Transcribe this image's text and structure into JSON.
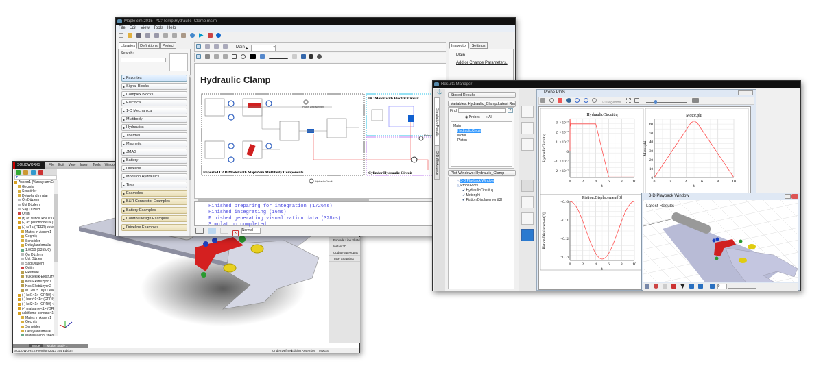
{
  "solidworks": {
    "logo": "SOLIDWORKS",
    "menu": [
      "File",
      "Edit",
      "View",
      "Insert",
      "Tools",
      "Window"
    ],
    "tree": [
      {
        "label": "Assem1  (Varsayılan<Görüntü D",
        "icon": "assembly",
        "indent": 0
      },
      {
        "label": "Geçmiş",
        "icon": "folder",
        "indent": 1
      },
      {
        "label": "Sensörler",
        "icon": "folder",
        "indent": 1
      },
      {
        "label": "Detaylandırmalar",
        "icon": "folder",
        "indent": 1
      },
      {
        "label": "Ön Düzlem",
        "icon": "plane",
        "indent": 1
      },
      {
        "label": "Üst Düzlem",
        "icon": "plane",
        "indent": 1
      },
      {
        "label": "Sağ Düzlem",
        "icon": "plane",
        "indent": 1
      },
      {
        "label": "Orijin",
        "icon": "origin",
        "indent": 1
      },
      {
        "label": "(f) ax silindir kovu<1> (OPR",
        "icon": "part",
        "indent": 1
      },
      {
        "label": "(-) ax pistonrod<1> (OPR0)",
        "icon": "part",
        "indent": 1
      },
      {
        "label": "(-) r<1> (OPR0) <<Varsayıl",
        "icon": "part",
        "indent": 1
      },
      {
        "label": "Mates in Assem1",
        "icon": "folder",
        "indent": 2
      },
      {
        "label": "Geçmiş",
        "icon": "folder",
        "indent": 2
      },
      {
        "label": "Sensörler",
        "icon": "folder",
        "indent": 2
      },
      {
        "label": "Detaylandırmalar",
        "icon": "folder",
        "indent": 2
      },
      {
        "label": "1.0050 (S355J0)",
        "icon": "material",
        "indent": 2
      },
      {
        "label": "Ön Düzlem",
        "icon": "plane",
        "indent": 2
      },
      {
        "label": "Üst Düzlem",
        "icon": "plane",
        "indent": 2
      },
      {
        "label": "Sağ Düzlem",
        "icon": "plane",
        "indent": 2
      },
      {
        "label": "Orijin",
        "icon": "origin",
        "indent": 2
      },
      {
        "label": "Ekstrude1",
        "icon": "feature",
        "indent": 2
      },
      {
        "label": "Yükseklik-Ekstrüzyon1",
        "icon": "feature",
        "indent": 2
      },
      {
        "label": "Kes-Ekstrüzyon1",
        "icon": "feature",
        "indent": 2
      },
      {
        "label": "Kes-Ekstrüzyon2",
        "icon": "feature",
        "indent": 2
      },
      {
        "label": "M12x1.5 Dişli Delik1",
        "icon": "feature",
        "indent": 2
      },
      {
        "label": "(-) kol1<1> (OPR0) <<Varsı",
        "icon": "part",
        "indent": 1
      },
      {
        "label": "(-) burc^1<1> (OPR0) <<Va",
        "icon": "part",
        "indent": 1
      },
      {
        "label": "(-) kol2<1> (OPR0) <<Varsı",
        "icon": "part",
        "indent": 1
      },
      {
        "label": "(-) mafsame<1> (OPR0)",
        "icon": "part",
        "indent": 1
      },
      {
        "label": "sabitleme somunu<1> (OP",
        "icon": "part",
        "indent": 1
      },
      {
        "label": "Mates in Assem1",
        "icon": "folder",
        "indent": 2
      },
      {
        "label": "Geçmiş",
        "icon": "folder",
        "indent": 2
      },
      {
        "label": "Sensörler",
        "icon": "folder",
        "indent": 2
      },
      {
        "label": "Detaylandırmalar",
        "icon": "folder",
        "indent": 2
      },
      {
        "label": "Material <not specified>",
        "icon": "material",
        "indent": 2
      },
      {
        "label": "Ön Düzlem",
        "icon": "plane",
        "indent": 2
      },
      {
        "label": "Üst Düzlem",
        "icon": "plane",
        "indent": 2
      },
      {
        "label": "Sağ Düzlem",
        "icon": "plane",
        "indent": 2
      },
      {
        "label": "Orijin",
        "icon": "origin",
        "indent": 2
      },
      {
        "label": "Yükseklik-Ekstrüzyon1",
        "icon": "feature",
        "indent": 2
      },
      {
        "label": "Kes-Ekstrüzyon2",
        "icon": "feature",
        "indent": 2
      }
    ],
    "bottom_tabs": [
      "Model",
      "Motion Study 1"
    ],
    "edition": "SOLIDWORKS Premium 2013 x64 Edition",
    "task_pane": [
      "Explode Line Sketch",
      "Instant3D",
      "Update Speedpak",
      "Take Snapshot"
    ],
    "status": [
      "Under Defined",
      "Editing Assembly",
      "MMGS"
    ]
  },
  "maplesim": {
    "title": "MapleSim 2015 - *C:\\Temp\\Hydraulic_Clamp.msim",
    "menu": [
      "File",
      "Edit",
      "View",
      "Tools",
      "Help"
    ],
    "left_tabs": [
      "Libraries",
      "Definitions",
      "Project"
    ],
    "search_label": "Search:",
    "search_value": "",
    "libraries": [
      "Favorites",
      "Signal Blocks",
      "Complex Blocks",
      "Electrical",
      "1-D Mechanical",
      "Multibody",
      "Hydraulics",
      "Thermal",
      "Magnetic",
      "JMAG",
      "Battery",
      "Driveline",
      "Modelon Hydraulics",
      "Tires"
    ],
    "examples": [
      "Examples",
      "B&R Connector Examples",
      "Battery Examples",
      "Control Design Examples",
      "Driveline Examples"
    ],
    "breadcrumb": "Main",
    "canvas_title": "Hydraulic Clamp",
    "diagram": {
      "cad_box": "Imported CAD Model with MapleSim Multibody Components",
      "dc_box": "DC Motor with Electric Circuit",
      "cyl_box": "Cylinder Hydraulic Circuit",
      "probe_piston": "Piston Displacement",
      "probe_hyd": "HydraulicCircuit",
      "probe_motor": "Motor phi"
    },
    "console": [
      "Finished preparing for integration (1726ms)",
      "Finished integrating (16ms)",
      "Finished generating visualization data (328ms)",
      "Simulation completed"
    ],
    "console_mode": "Normal",
    "inspector_tabs": [
      "Inspector",
      "Settings"
    ],
    "inspector_main": "Main",
    "inspector_link": "Add or Change Parameters."
  },
  "results": {
    "title": "Results Manager",
    "side_tabs": [
      "Simulation Results",
      "3-D Workspace"
    ],
    "stored": "Stored Results",
    "variables_header": "Variables: Hydraulic_Clamp.Latest Results",
    "find_label": "Find:",
    "find_value": "",
    "radio_probes": "Probes",
    "radio_all": "All",
    "radio_selected": "Probes",
    "var_tree": [
      "Main",
      "HydraulicCircuit",
      "Motor",
      "Piston"
    ],
    "plot_windows_header": "Plot Windows: Hydraulic_Clamp",
    "plot_tree": [
      "3-D Playback Window",
      "Probe Plots",
      "HydraulicCircuit.q",
      "Motor.phi",
      "Pistion.Displacement[3]"
    ],
    "probe_plots_title": "Probe Plots",
    "legends_label": "Legends",
    "playback_title": "3-D Playback Window",
    "playback_label": "Latest Results",
    "playback_frame": "0"
  },
  "chart_data": [
    {
      "type": "line",
      "title": "HydraulicCircuit.q",
      "xlabel": "t",
      "ylabel": "HydraulicCircuit.q",
      "xlim": [
        0,
        10
      ],
      "ylim": [
        -2.7e-07,
        3.4e-07
      ],
      "xticks": [
        "0",
        "2",
        "4",
        "6",
        "8",
        "10"
      ],
      "yticks": [
        {
          "v": 3e-07,
          "l": "3. × 10⁻⁷"
        },
        {
          "v": 2e-07,
          "l": "2. × 10⁻⁷"
        },
        {
          "v": 1e-07,
          "l": "1. × 10⁻⁷"
        },
        {
          "v": 0,
          "l": "0"
        },
        {
          "v": -1e-07,
          "l": "−1. × 10⁻⁷"
        },
        {
          "v": -2e-07,
          "l": "−2. × 10⁻⁷"
        }
      ],
      "x": [
        0,
        0.02,
        0.05,
        0.1,
        4,
        6,
        10
      ],
      "y": [
        0,
        3.4e-07,
        2.6e-07,
        2.85e-07,
        2.85e-07,
        -2.65e-07,
        -2.65e-07
      ],
      "grid": true,
      "color": "#ff5050"
    },
    {
      "type": "line",
      "title": "Motor.phi",
      "xlabel": "t",
      "ylabel": "Motor.phi",
      "xlim": [
        0,
        10
      ],
      "ylim": [
        0,
        65
      ],
      "xticks": [
        "0",
        "2",
        "4",
        "6",
        "8",
        "10"
      ],
      "yticks": [
        {
          "v": 0,
          "l": "0"
        },
        {
          "v": 10,
          "l": "10"
        },
        {
          "v": 20,
          "l": "20"
        },
        {
          "v": 30,
          "l": "30"
        },
        {
          "v": 40,
          "l": "40"
        },
        {
          "v": 50,
          "l": "50"
        },
        {
          "v": 60,
          "l": "60"
        }
      ],
      "x": [
        0,
        4.3,
        4.6,
        5,
        5.4,
        5.7,
        10
      ],
      "y": [
        0,
        57,
        61,
        63,
        61,
        57,
        0
      ],
      "grid": true,
      "color": "#ff5050"
    },
    {
      "type": "line",
      "title": "Pistion.Displacement[3]",
      "xlabel": "t",
      "ylabel": "Pistion.Displacement[3]",
      "xlim": [
        0,
        10
      ],
      "ylim": [
        -0.132,
        -0.1
      ],
      "xticks": [
        "0",
        "2",
        "4",
        "6",
        "8",
        "10"
      ],
      "yticks": [
        {
          "v": -0.1,
          "l": "−0.10"
        },
        {
          "v": -0.11,
          "l": "−0.11"
        },
        {
          "v": -0.12,
          "l": "−0.12"
        },
        {
          "v": -0.13,
          "l": "−0.13"
        }
      ],
      "x": [
        0,
        1,
        2,
        3,
        4,
        5,
        6,
        7,
        8,
        9,
        10
      ],
      "y": [
        -0.1,
        -0.1065,
        -0.1131,
        -0.1195,
        -0.1258,
        -0.1312,
        -0.1258,
        -0.1195,
        -0.1131,
        -0.1065,
        -0.1
      ],
      "grid": true,
      "color": "#ff5050"
    }
  ],
  "colors": {
    "accent": "#3399ff",
    "plot_line": "#ff5050",
    "console_text": "#4a4ae0",
    "dark_title": "#111111"
  }
}
